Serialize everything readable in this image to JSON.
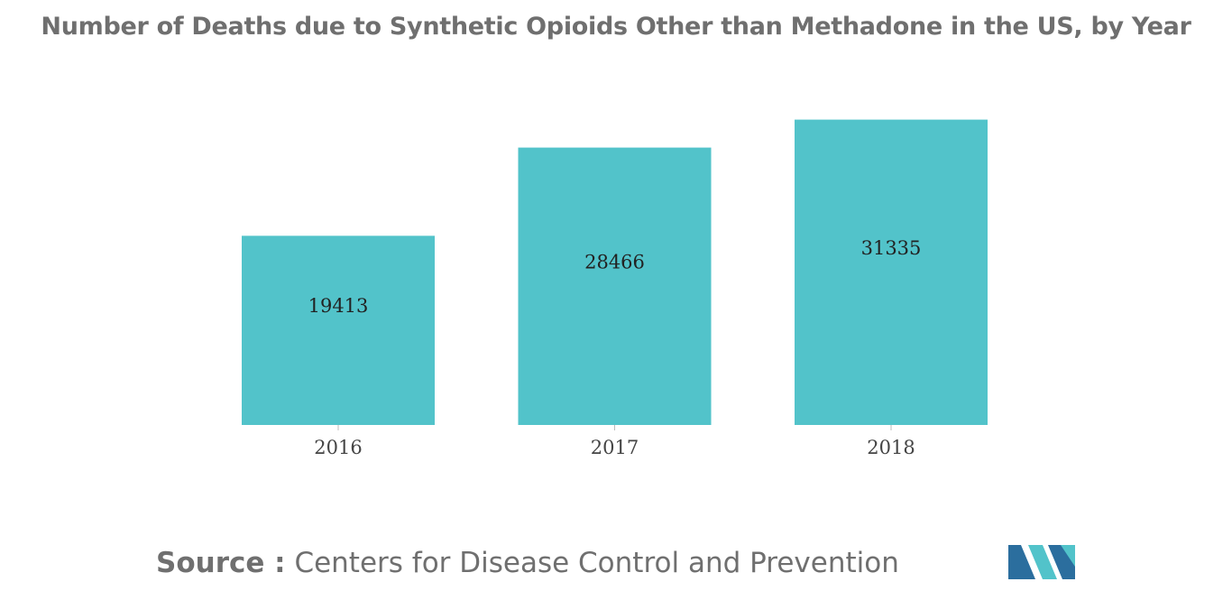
{
  "chart_data": {
    "type": "bar",
    "title": "Number of Deaths due to Synthetic Opioids Other than Methadone in the US, by Year",
    "categories": [
      "2016",
      "2017",
      "2018"
    ],
    "values": [
      19413,
      28466,
      31335
    ],
    "xlabel": "",
    "ylabel": "",
    "ylim": [
      0,
      35000
    ],
    "grid": false,
    "legend": "none",
    "bar_color": "#52c3ca",
    "data_labels": [
      "19413",
      "28466",
      "31335"
    ]
  },
  "source": {
    "label": "Source :",
    "text": "Centers for Disease Control and Prevention"
  },
  "logo": {
    "name": "Mordor Intelligence logo",
    "colors": [
      "#2b6e9e",
      "#52c3ca"
    ]
  }
}
